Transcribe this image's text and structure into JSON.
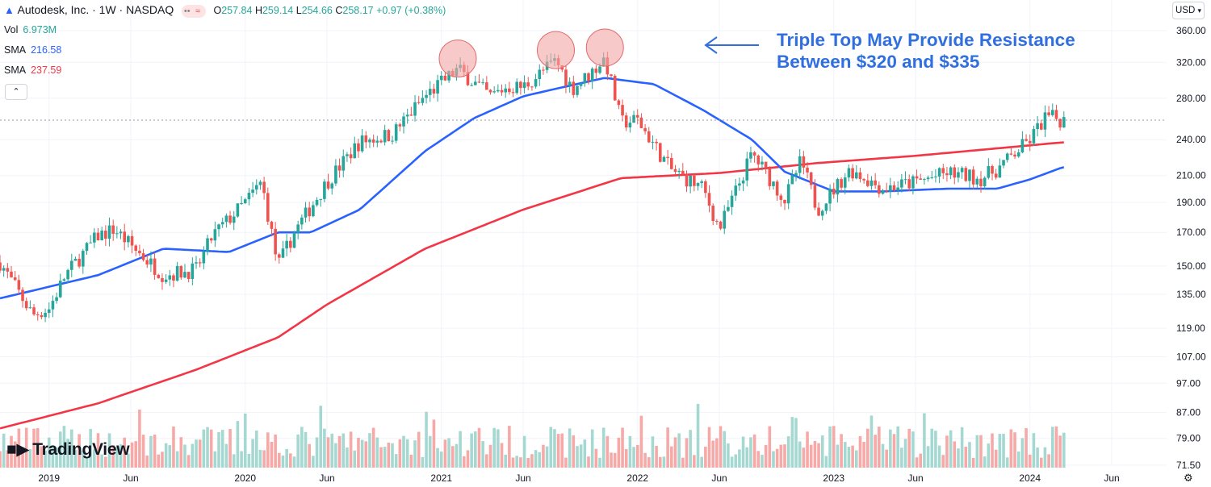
{
  "header": {
    "symbol_title": "Autodesk, Inc. · 1W · NASDAQ",
    "eq_label": "≈",
    "ohlc": {
      "o_label": "O",
      "o": "257.84",
      "h_label": "H",
      "h": "259.14",
      "l_label": "L",
      "l": "254.66",
      "c_label": "C",
      "c": "258.17",
      "chg": "+0.97 (+0.38%)"
    }
  },
  "legend": [
    {
      "label": "Vol",
      "value": "6.973M",
      "color": "#26a69a"
    },
    {
      "label": "SMA",
      "value": "216.58",
      "color": "#2962ff"
    },
    {
      "label": "SMA",
      "value": "237.59",
      "color": "#f23645"
    }
  ],
  "currency": "USD",
  "annotation": {
    "line1": "Triple Top May Provide Resistance",
    "line2": "Between $320 and $335",
    "arrow": "←"
  },
  "brand": "TradingView",
  "colors": {
    "up": "#26a69a",
    "down": "#ef5350",
    "sma50": "#2962ff",
    "sma200": "#f23645",
    "vol_up": "#a6d8d2",
    "vol_down": "#f7a9a7",
    "annotation": "#2f6fe0",
    "circle": "#f4a5a5"
  },
  "chart_data": {
    "type": "candlestick",
    "title": "Autodesk, Inc. · 1W · NASDAQ",
    "y_scale": "log",
    "ylim": [
      71.5,
      375
    ],
    "y_ticks": [
      "360.00",
      "320.00",
      "280.00",
      "240.00",
      "210.00",
      "190.00",
      "170.00",
      "150.00",
      "135.00",
      "119.00",
      "107.00",
      "97.00",
      "87.00",
      "79.00",
      "71.50"
    ],
    "x_ticks": [
      "2019",
      "Jun",
      "2020",
      "Jun",
      "2021",
      "Jun",
      "2022",
      "Jun",
      "2023",
      "Jun",
      "2024",
      "Jun"
    ],
    "price_keyframes": [
      [
        "2018-10",
        152
      ],
      [
        "2018-12",
        125
      ],
      [
        "2019-01",
        128
      ],
      [
        "2019-02",
        145
      ],
      [
        "2019-04",
        168
      ],
      [
        "2019-05",
        172
      ],
      [
        "2019-06",
        162
      ],
      [
        "2019-08",
        145
      ],
      [
        "2019-10",
        148
      ],
      [
        "2019-11",
        168
      ],
      [
        "2020-01",
        190
      ],
      [
        "2020-02",
        205
      ],
      [
        "2020-03",
        150
      ],
      [
        "2020-04",
        170
      ],
      [
        "2020-06",
        205
      ],
      [
        "2020-08",
        238
      ],
      [
        "2020-10",
        245
      ],
      [
        "2020-12",
        282
      ],
      [
        "2021-02",
        312
      ],
      [
        "2021-04",
        282
      ],
      [
        "2021-05",
        292
      ],
      [
        "2021-06",
        292
      ],
      [
        "2021-08",
        322
      ],
      [
        "2021-09",
        290
      ],
      [
        "2021-10",
        305
      ],
      [
        "2021-11",
        325
      ],
      [
        "2021-12",
        256
      ],
      [
        "2022-01",
        258
      ],
      [
        "2022-03",
        215
      ],
      [
        "2022-05",
        200
      ],
      [
        "2022-06",
        172
      ],
      [
        "2022-08",
        228
      ],
      [
        "2022-10",
        192
      ],
      [
        "2022-11",
        222
      ],
      [
        "2022-12",
        185
      ],
      [
        "2023-02",
        215
      ],
      [
        "2023-04",
        200
      ],
      [
        "2023-06",
        205
      ],
      [
        "2023-08",
        212
      ],
      [
        "2023-10",
        208
      ],
      [
        "2023-11",
        215
      ],
      [
        "2024-01",
        240
      ],
      [
        "2024-02",
        262
      ],
      [
        "2024-03",
        258
      ]
    ],
    "sma50_keyframes": [
      [
        "2018-10",
        133
      ],
      [
        "2019-04",
        145
      ],
      [
        "2019-08",
        160
      ],
      [
        "2019-12",
        158
      ],
      [
        "2020-03",
        170
      ],
      [
        "2020-05",
        170
      ],
      [
        "2020-08",
        185
      ],
      [
        "2020-12",
        230
      ],
      [
        "2021-03",
        260
      ],
      [
        "2021-06",
        282
      ],
      [
        "2021-08",
        290
      ],
      [
        "2021-11",
        302
      ],
      [
        "2022-02",
        295
      ],
      [
        "2022-05",
        268
      ],
      [
        "2022-08",
        240
      ],
      [
        "2022-10",
        213
      ],
      [
        "2023-01",
        198
      ],
      [
        "2023-04",
        198
      ],
      [
        "2023-08",
        200
      ],
      [
        "2023-11",
        200
      ],
      [
        "2024-01",
        207
      ],
      [
        "2024-03",
        216.58
      ]
    ],
    "sma200_keyframes": [
      [
        "2018-10",
        82
      ],
      [
        "2019-04",
        90
      ],
      [
        "2019-10",
        102
      ],
      [
        "2020-03",
        115
      ],
      [
        "2020-06",
        130
      ],
      [
        "2020-12",
        160
      ],
      [
        "2021-06",
        185
      ],
      [
        "2021-12",
        208
      ],
      [
        "2022-06",
        212
      ],
      [
        "2022-12",
        220
      ],
      [
        "2023-06",
        226
      ],
      [
        "2024-03",
        237.59
      ]
    ],
    "peaks_circled": [
      "2021-02",
      "2021-08",
      "2021-11"
    ],
    "resistance_range": [
      320,
      335
    ],
    "last_close": 258.17,
    "last_volume": "6.973M"
  }
}
